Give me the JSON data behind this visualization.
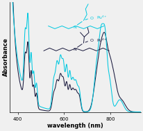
{
  "xlabel": "wavelength (nm)",
  "ylabel": "Absorbance",
  "xlim": [
    365,
    930
  ],
  "bg_color": "#f0f0f0",
  "line_cyan_color": "#00c8e0",
  "line_dark_color": "#1a1a3e",
  "figsize": [
    2.06,
    1.89
  ],
  "dpi": 100,
  "xticks": [
    400,
    600,
    800
  ]
}
